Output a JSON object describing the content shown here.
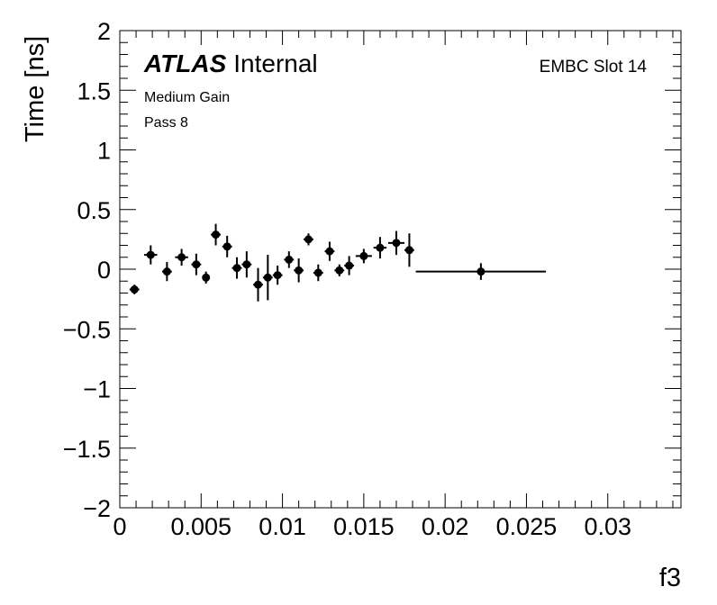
{
  "chart_data": {
    "type": "scatter",
    "title": "",
    "xlabel": "f3",
    "ylabel": "Time [ns]",
    "xlim": [
      0,
      0.0345
    ],
    "ylim": [
      -2,
      2
    ],
    "x_ticks": [
      0,
      0.005,
      0.01,
      0.015,
      0.02,
      0.025,
      0.03
    ],
    "x_tick_labels": [
      "0",
      "0.005",
      "0.01",
      "0.015",
      "0.02",
      "0.025",
      "0.03"
    ],
    "y_ticks": [
      -2,
      -1.5,
      -1,
      -0.5,
      0,
      0.5,
      1,
      1.5,
      2
    ],
    "y_tick_labels": [
      "−2",
      "−1.5",
      "−1",
      "−0.5",
      "0",
      "0.5",
      "1",
      "1.5",
      "2"
    ],
    "grid": false,
    "color": "#000000",
    "annotations": {
      "experiment": "ATLAS",
      "status": "Internal",
      "region": "EMBC Slot 14",
      "gain": "Medium Gain",
      "pass": "Pass 8"
    },
    "series": [
      {
        "points": [
          {
            "x": 0.0009,
            "y": -0.17,
            "xerr": 0.0003,
            "yerr": 0.04
          },
          {
            "x": 0.0019,
            "y": 0.12,
            "xerr": 0.0004,
            "yerr": 0.08
          },
          {
            "x": 0.0029,
            "y": -0.02,
            "xerr": 0.0003,
            "yerr": 0.08
          },
          {
            "x": 0.0038,
            "y": 0.1,
            "xerr": 0.0004,
            "yerr": 0.07
          },
          {
            "x": 0.0047,
            "y": 0.04,
            "xerr": 0.0003,
            "yerr": 0.09
          },
          {
            "x": 0.0053,
            "y": -0.07,
            "xerr": 0.0002,
            "yerr": 0.05
          },
          {
            "x": 0.0059,
            "y": 0.29,
            "xerr": 0.0003,
            "yerr": 0.09
          },
          {
            "x": 0.0066,
            "y": 0.19,
            "xerr": 0.0003,
            "yerr": 0.09
          },
          {
            "x": 0.0072,
            "y": 0.01,
            "xerr": 0.0003,
            "yerr": 0.09
          },
          {
            "x": 0.0078,
            "y": 0.04,
            "xerr": 0.0003,
            "yerr": 0.11
          },
          {
            "x": 0.0085,
            "y": -0.13,
            "xerr": 0.0003,
            "yerr": 0.14
          },
          {
            "x": 0.0091,
            "y": -0.07,
            "xerr": 0.0003,
            "yerr": 0.19
          },
          {
            "x": 0.0097,
            "y": -0.05,
            "xerr": 0.0003,
            "yerr": 0.08
          },
          {
            "x": 0.0104,
            "y": 0.08,
            "xerr": 0.0003,
            "yerr": 0.07
          },
          {
            "x": 0.011,
            "y": -0.01,
            "xerr": 0.0003,
            "yerr": 0.1
          },
          {
            "x": 0.0116,
            "y": 0.25,
            "xerr": 0.0003,
            "yerr": 0.05
          },
          {
            "x": 0.0122,
            "y": -0.03,
            "xerr": 0.0003,
            "yerr": 0.07
          },
          {
            "x": 0.0129,
            "y": 0.15,
            "xerr": 0.0003,
            "yerr": 0.08
          },
          {
            "x": 0.0135,
            "y": -0.01,
            "xerr": 0.0003,
            "yerr": 0.05
          },
          {
            "x": 0.0141,
            "y": 0.03,
            "xerr": 0.0003,
            "yerr": 0.08
          },
          {
            "x": 0.015,
            "y": 0.11,
            "xerr": 0.0005,
            "yerr": 0.06
          },
          {
            "x": 0.016,
            "y": 0.18,
            "xerr": 0.0004,
            "yerr": 0.09
          },
          {
            "x": 0.017,
            "y": 0.22,
            "xerr": 0.0005,
            "yerr": 0.1
          },
          {
            "x": 0.0178,
            "y": 0.16,
            "xerr": 0.0003,
            "yerr": 0.14
          },
          {
            "x": 0.0222,
            "y": -0.02,
            "xerr": 0.004,
            "yerr": 0.07
          }
        ]
      }
    ]
  }
}
